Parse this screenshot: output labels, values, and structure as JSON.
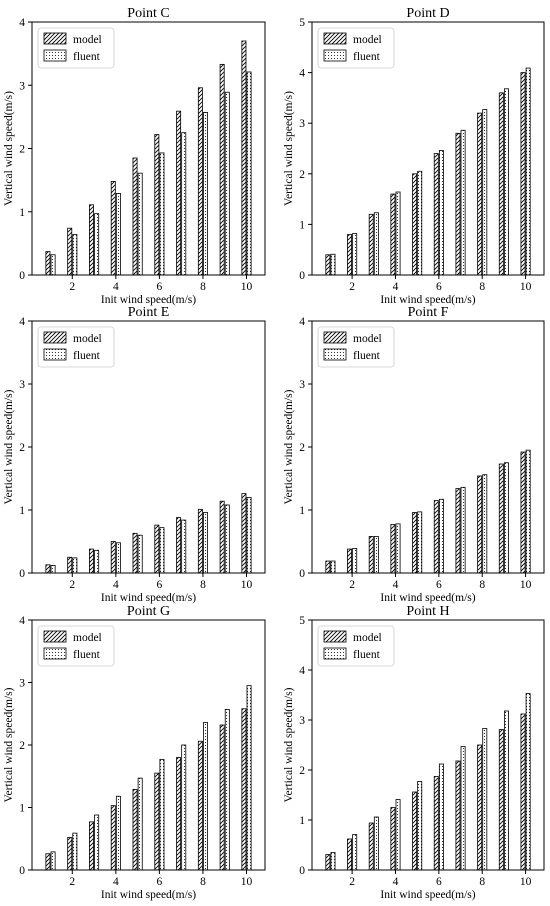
{
  "figure": {
    "xlabel": "Init wind speed(m/s)",
    "ylabel": "Vertical wind speed(m/s)"
  },
  "chart_data": [
    {
      "type": "bar",
      "title": "Point C",
      "xlabel": "Init wind speed(m/s)",
      "ylabel": "Vertical wind speed(m/s)",
      "x": [
        1,
        2,
        3,
        4,
        5,
        6,
        7,
        8,
        9,
        10
      ],
      "xticks": [
        "2",
        "4",
        "6",
        "8",
        "10"
      ],
      "yticks": [
        "0",
        "1",
        "2",
        "3",
        "4"
      ],
      "ylim": [
        0,
        4
      ],
      "legend": "top-left",
      "series": [
        {
          "name": "model",
          "pattern": "hatch",
          "values": [
            0.37,
            0.74,
            1.11,
            1.48,
            1.85,
            2.22,
            2.59,
            2.96,
            3.33,
            3.7
          ]
        },
        {
          "name": "fluent",
          "pattern": "dots",
          "values": [
            0.32,
            0.64,
            0.97,
            1.29,
            1.61,
            1.93,
            2.25,
            2.57,
            2.89,
            3.21
          ]
        }
      ]
    },
    {
      "type": "bar",
      "title": "Point D",
      "xlabel": "Init wind speed(m/s)",
      "ylabel": "Vertical wind speed(m/s)",
      "x": [
        1,
        2,
        3,
        4,
        5,
        6,
        7,
        8,
        9,
        10
      ],
      "xticks": [
        "2",
        "4",
        "6",
        "8",
        "10"
      ],
      "yticks": [
        "0",
        "1",
        "2",
        "3",
        "4",
        "5"
      ],
      "ylim": [
        0,
        5
      ],
      "legend": "top-left",
      "series": [
        {
          "name": "model",
          "pattern": "hatch",
          "values": [
            0.4,
            0.8,
            1.2,
            1.6,
            2.0,
            2.4,
            2.8,
            3.2,
            3.6,
            4.0
          ]
        },
        {
          "name": "fluent",
          "pattern": "dots",
          "values": [
            0.41,
            0.82,
            1.23,
            1.64,
            2.05,
            2.46,
            2.86,
            3.27,
            3.68,
            4.09
          ]
        }
      ]
    },
    {
      "type": "bar",
      "title": "Point E",
      "xlabel": "Init wind speed(m/s)",
      "ylabel": "Vertical wind speed(m/s)",
      "x": [
        1,
        2,
        3,
        4,
        5,
        6,
        7,
        8,
        9,
        10
      ],
      "xticks": [
        "2",
        "4",
        "6",
        "8",
        "10"
      ],
      "yticks": [
        "0",
        "1",
        "2",
        "3",
        "4"
      ],
      "ylim": [
        0,
        4
      ],
      "legend": "top-left",
      "series": [
        {
          "name": "model",
          "pattern": "hatch",
          "values": [
            0.13,
            0.25,
            0.38,
            0.5,
            0.63,
            0.76,
            0.88,
            1.01,
            1.14,
            1.26
          ]
        },
        {
          "name": "fluent",
          "pattern": "dots",
          "values": [
            0.12,
            0.24,
            0.36,
            0.48,
            0.6,
            0.72,
            0.84,
            0.96,
            1.08,
            1.2
          ]
        }
      ]
    },
    {
      "type": "bar",
      "title": "Point F",
      "xlabel": "Init wind speed(m/s)",
      "ylabel": "Vertical wind speed(m/s)",
      "x": [
        1,
        2,
        3,
        4,
        5,
        6,
        7,
        8,
        9,
        10
      ],
      "xticks": [
        "2",
        "4",
        "6",
        "8",
        "10"
      ],
      "yticks": [
        "0",
        "1",
        "2",
        "3",
        "4"
      ],
      "ylim": [
        0,
        4
      ],
      "legend": "top-left",
      "series": [
        {
          "name": "model",
          "pattern": "hatch",
          "values": [
            0.19,
            0.38,
            0.58,
            0.77,
            0.96,
            1.15,
            1.34,
            1.54,
            1.73,
            1.92
          ]
        },
        {
          "name": "fluent",
          "pattern": "dots",
          "values": [
            0.19,
            0.39,
            0.58,
            0.78,
            0.97,
            1.17,
            1.36,
            1.56,
            1.75,
            1.95
          ]
        }
      ]
    },
    {
      "type": "bar",
      "title": "Point G",
      "xlabel": "Init wind speed(m/s)",
      "ylabel": "Vertical wind speed(m/s)",
      "x": [
        1,
        2,
        3,
        4,
        5,
        6,
        7,
        8,
        9,
        10
      ],
      "xticks": [
        "2",
        "4",
        "6",
        "8",
        "10"
      ],
      "yticks": [
        "0",
        "1",
        "2",
        "3",
        "4"
      ],
      "ylim": [
        0,
        4
      ],
      "legend": "top-left",
      "series": [
        {
          "name": "model",
          "pattern": "hatch",
          "values": [
            0.26,
            0.52,
            0.77,
            1.03,
            1.29,
            1.55,
            1.8,
            2.06,
            2.32,
            2.58
          ]
        },
        {
          "name": "fluent",
          "pattern": "dots",
          "values": [
            0.29,
            0.59,
            0.88,
            1.18,
            1.47,
            1.77,
            2.0,
            2.36,
            2.57,
            2.95
          ]
        }
      ]
    },
    {
      "type": "bar",
      "title": "Point H",
      "xlabel": "Init wind speed(m/s)",
      "ylabel": "Vertical wind speed(m/s)",
      "x": [
        1,
        2,
        3,
        4,
        5,
        6,
        7,
        8,
        9,
        10
      ],
      "xticks": [
        "2",
        "4",
        "6",
        "8",
        "10"
      ],
      "yticks": [
        "0",
        "1",
        "2",
        "3",
        "4",
        "5"
      ],
      "ylim": [
        0,
        5
      ],
      "legend": "top-left",
      "series": [
        {
          "name": "model",
          "pattern": "hatch",
          "values": [
            0.31,
            0.62,
            0.94,
            1.25,
            1.56,
            1.87,
            2.18,
            2.5,
            2.81,
            3.12
          ]
        },
        {
          "name": "fluent",
          "pattern": "dots",
          "values": [
            0.35,
            0.71,
            1.06,
            1.41,
            1.77,
            2.12,
            2.47,
            2.83,
            3.18,
            3.53
          ]
        }
      ]
    }
  ]
}
